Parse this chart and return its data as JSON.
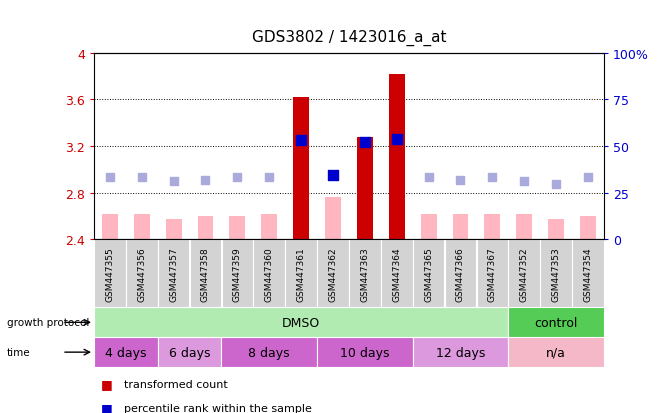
{
  "title": "GDS3802 / 1423016_a_at",
  "samples": [
    "GSM447355",
    "GSM447356",
    "GSM447357",
    "GSM447358",
    "GSM447359",
    "GSM447360",
    "GSM447361",
    "GSM447362",
    "GSM447363",
    "GSM447364",
    "GSM447365",
    "GSM447366",
    "GSM447367",
    "GSM447352",
    "GSM447353",
    "GSM447354"
  ],
  "transformed_count": [
    2.62,
    2.62,
    2.57,
    2.6,
    2.6,
    2.62,
    3.62,
    2.76,
    3.28,
    3.82,
    2.62,
    2.62,
    2.62,
    2.62,
    2.57,
    2.6
  ],
  "percentile_rank": [
    2.93,
    2.93,
    2.9,
    2.91,
    2.93,
    2.93,
    3.25,
    2.95,
    3.23,
    3.26,
    2.93,
    2.91,
    2.93,
    2.9,
    2.87,
    2.93
  ],
  "tc_present": [
    false,
    false,
    false,
    false,
    false,
    false,
    true,
    false,
    true,
    true,
    false,
    false,
    false,
    false,
    false,
    false
  ],
  "pr_present": [
    false,
    false,
    false,
    false,
    false,
    false,
    true,
    true,
    true,
    true,
    false,
    false,
    false,
    false,
    false,
    false
  ],
  "ylim": [
    2.4,
    4.0
  ],
  "yticks": [
    2.4,
    2.8,
    3.2,
    3.6,
    4.0
  ],
  "ytick_labels_left": [
    "2.4",
    "2.8",
    "3.2",
    "3.6",
    "4"
  ],
  "ytick_labels_right": [
    "0",
    "25",
    "50",
    "75",
    "100%"
  ],
  "growth_protocol_groups": [
    {
      "label": "DMSO",
      "start": 0,
      "end": 12,
      "color": "#B2EBB2"
    },
    {
      "label": "control",
      "start": 13,
      "end": 15,
      "color": "#55CC55"
    }
  ],
  "time_groups": [
    {
      "label": "4 days",
      "start": 0,
      "end": 1,
      "color": "#CC66CC"
    },
    {
      "label": "6 days",
      "start": 2,
      "end": 3,
      "color": "#DD99DD"
    },
    {
      "label": "8 days",
      "start": 4,
      "end": 6,
      "color": "#CC66CC"
    },
    {
      "label": "10 days",
      "start": 7,
      "end": 9,
      "color": "#CC66CC"
    },
    {
      "label": "12 days",
      "start": 10,
      "end": 12,
      "color": "#DD99DD"
    },
    {
      "label": "n/a",
      "start": 13,
      "end": 15,
      "color": "#F4B8C8"
    }
  ],
  "color_tc_present": "#CC0000",
  "color_tc_absent": "#FFB6C1",
  "color_pr_present": "#0000CC",
  "color_pr_absent": "#AAAADD",
  "bg_color": "#FFFFFF",
  "left_label_color": "#CC0000",
  "right_label_color": "#0000CC"
}
